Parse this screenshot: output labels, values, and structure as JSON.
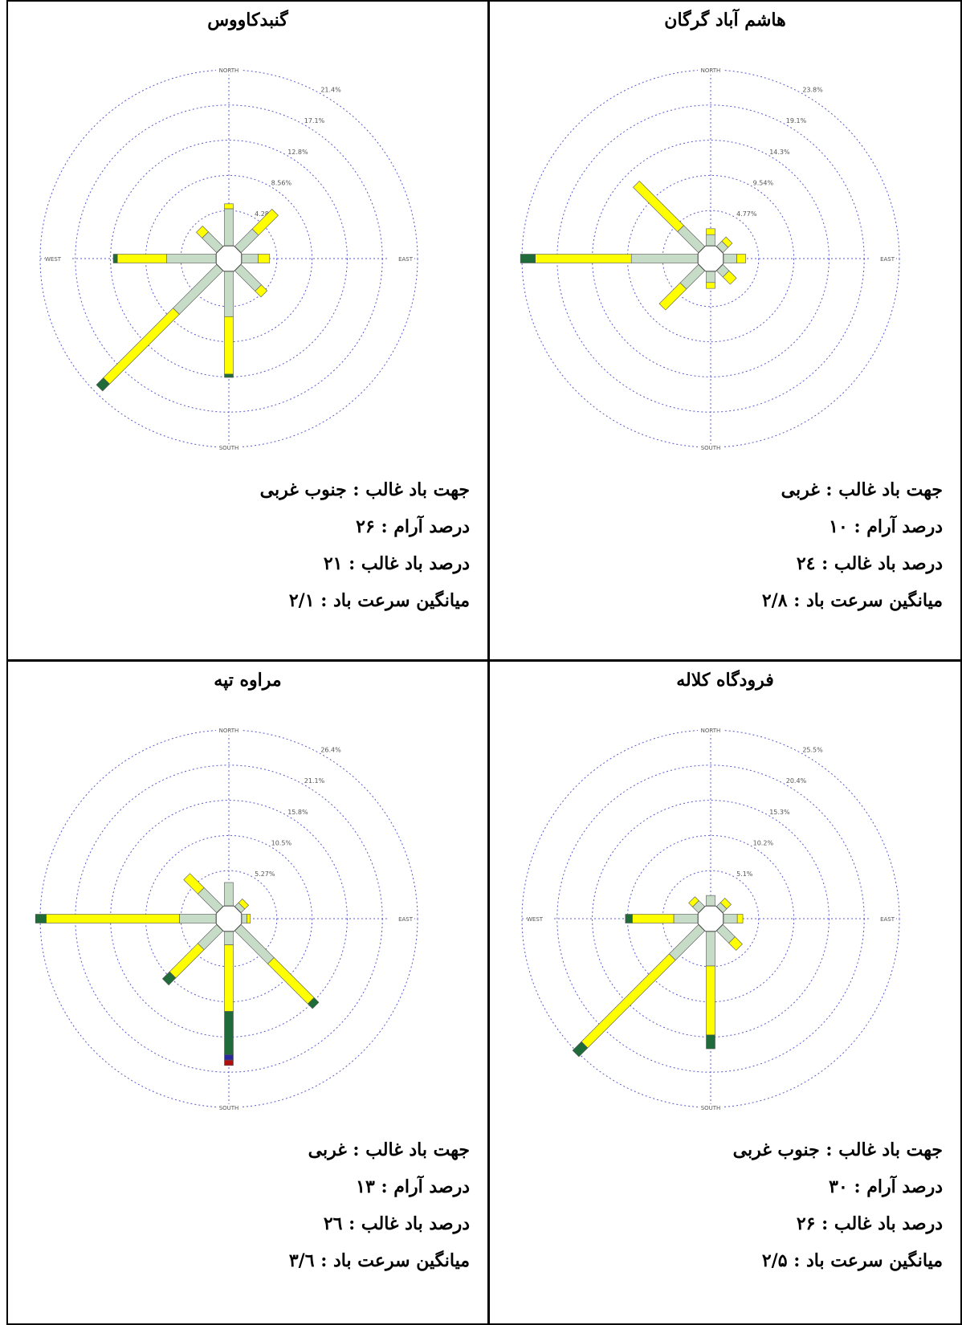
{
  "colors": {
    "grid": "#5a5acf",
    "band1": "#c6dcc6",
    "band2": "#ffff00",
    "band3": "#1f6b3a",
    "band4": "#2a2aa0",
    "band5": "#b01010",
    "outline": "#555555"
  },
  "panels": [
    {
      "title": "هاشم آباد گرگان",
      "stats": [
        "جهت باد غالب : غربی",
        "درصد آرام : ۱۰",
        "درصد باد غالب : ۲٤",
        "میانگین سرعت باد : ۲/۸"
      ],
      "chart_data": {
        "type": "wind-rose",
        "axis_labels": [
          "NORTH",
          "EAST",
          "SOUTH",
          "WEST"
        ],
        "ring_labels": [
          "4.77%",
          "9.54%",
          "14.3%",
          "19.1%",
          "23.8%"
        ],
        "rmax": 23.8,
        "directions": [
          "N",
          "NE",
          "E",
          "SE",
          "S",
          "SW",
          "W",
          "NW"
        ],
        "bars": [
          [
            1.5,
            0.8,
            0,
            0,
            0
          ],
          [
            1.0,
            0.8,
            0,
            0,
            0
          ],
          [
            1.8,
            1.2,
            0,
            0,
            0
          ],
          [
            1.2,
            1.4,
            0,
            0,
            0
          ],
          [
            1.5,
            0.8,
            0,
            0,
            0
          ],
          [
            3.5,
            4.0,
            0,
            0,
            0
          ],
          [
            9.0,
            13.0,
            2.0,
            0,
            0
          ],
          [
            4.0,
            8.5,
            0,
            0,
            0
          ]
        ]
      }
    },
    {
      "title": "گنبدکاووس",
      "stats": [
        "جهت باد غالب : جنوب غربی",
        "درصد آرام : ۲۶",
        "درصد باد غالب : ۲۱",
        "میانگین سرعت باد : ۲/۱"
      ],
      "chart_data": {
        "type": "wind-rose",
        "axis_labels": [
          "NORTH",
          "EAST",
          "SOUTH",
          "WEST"
        ],
        "ring_labels": [
          "4.28%",
          "8.56%",
          "12.8%",
          "17.1%",
          "21.4%"
        ],
        "rmax": 21.4,
        "directions": [
          "N",
          "NE",
          "E",
          "SE",
          "S",
          "SW",
          "W",
          "NW"
        ],
        "bars": [
          [
            4.5,
            0.6,
            0,
            0,
            0
          ],
          [
            3.0,
            3.4,
            0,
            0,
            0
          ],
          [
            2.0,
            1.4,
            0,
            0,
            0
          ],
          [
            3.5,
            1.0,
            0,
            0,
            0
          ],
          [
            5.5,
            7.0,
            0.4,
            0,
            0
          ],
          [
            7.5,
            12.0,
            1.2,
            0,
            0
          ],
          [
            6.0,
            6.0,
            0.5,
            0,
            0
          ],
          [
            2.5,
            1.0,
            0,
            0,
            0
          ]
        ]
      }
    },
    {
      "title": "فرودگاه کلاله",
      "stats": [
        "جهت باد غالب : جنوب غربی",
        "درصد آرام : ۳۰",
        "درصد باد غالب : ۲۶",
        "میانگین سرعت باد : ۲/۵"
      ],
      "chart_data": {
        "type": "wind-rose",
        "axis_labels": [
          "NORTH",
          "EAST",
          "SOUTH",
          "WEST"
        ],
        "ring_labels": [
          "5.1%",
          "10.2%",
          "15.3%",
          "20.4%",
          "25.5%"
        ],
        "rmax": 25.5,
        "directions": [
          "N",
          "NE",
          "E",
          "SE",
          "S",
          "SW",
          "W",
          "NW"
        ],
        "bars": [
          [
            1.5,
            0,
            0,
            0,
            0
          ],
          [
            0.8,
            0.9,
            0,
            0,
            0
          ],
          [
            2.0,
            0.8,
            0,
            0,
            0
          ],
          [
            2.5,
            1.5,
            0,
            0,
            0
          ],
          [
            5.0,
            10.0,
            2.0,
            0,
            0
          ],
          [
            6.0,
            18.0,
            1.8,
            0,
            0
          ],
          [
            3.5,
            6.0,
            1.0,
            0,
            0
          ],
          [
            1.2,
            0.8,
            0,
            0,
            0
          ]
        ]
      }
    },
    {
      "title": "مراوه تپه",
      "stats": [
        "جهت باد غالب : غربی",
        "درصد آرام : ۱۳",
        "درصد باد غالب : ۲٦",
        "میانگین سرعت باد : ۳/٦"
      ],
      "chart_data": {
        "type": "wind-rose",
        "axis_labels": [
          "NORTH",
          "EAST",
          "SOUTH",
          "WEST"
        ],
        "ring_labels": [
          "5.27%",
          "10.5%",
          "15.8%",
          "21.1%",
          "26.4%"
        ],
        "rmax": 26.4,
        "directions": [
          "N",
          "NE",
          "E",
          "SE",
          "S",
          "SW",
          "W",
          "NW"
        ],
        "bars": [
          [
            3.5,
            0,
            0,
            0,
            0
          ],
          [
            0.8,
            0.8,
            0,
            0,
            0
          ],
          [
            0.8,
            0.5,
            0,
            0,
            0
          ],
          [
            7.0,
            8.5,
            1.0,
            0,
            0
          ],
          [
            2.0,
            10.0,
            6.5,
            0.8,
            0.8
          ],
          [
            4.0,
            6.0,
            1.5,
            0,
            0
          ],
          [
            5.5,
            20.0,
            1.6,
            0,
            0
          ],
          [
            4.0,
            3.0,
            0,
            0,
            0
          ]
        ]
      }
    }
  ]
}
